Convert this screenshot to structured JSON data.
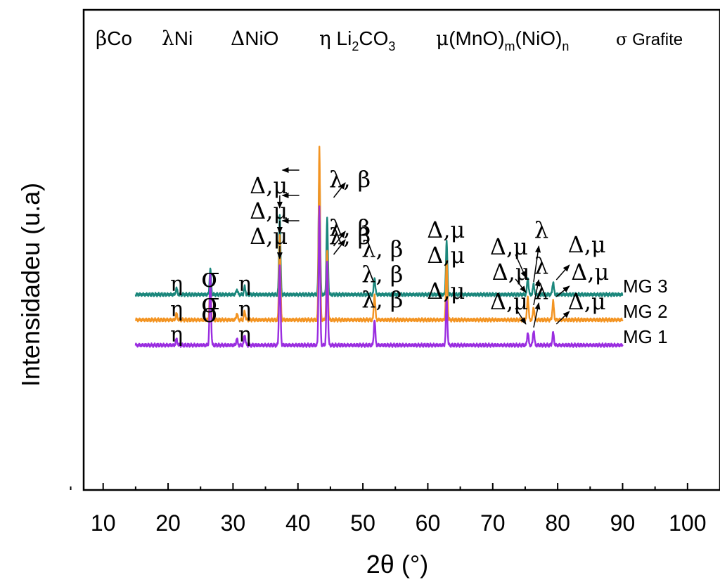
{
  "chart_data": {
    "type": "line",
    "xlabel": "2θ (°)",
    "ylabel": "Intensidadeu (u.a)",
    "xlim": [
      7,
      105
    ],
    "x_ticks": [
      10,
      20,
      30,
      40,
      50,
      60,
      70,
      80,
      90,
      100
    ],
    "x_range_measured": [
      15,
      90
    ],
    "legend": {
      "placement": "top",
      "entries": [
        {
          "symbol": "β",
          "label": "Co"
        },
        {
          "symbol": "λ",
          "label": "Ni"
        },
        {
          "symbol": "Δ",
          "label": "NiO"
        },
        {
          "symbol": "η",
          "label": "Li2CO3"
        },
        {
          "symbol": "μ",
          "label": "(MnO)m(NiO)n"
        },
        {
          "symbol": "σ",
          "label": "Grafite"
        }
      ]
    },
    "series": [
      {
        "name": "MG 3",
        "color": "#1b877c",
        "baseline": 0.6,
        "peaks": [
          {
            "x": 21.3,
            "h": 0.15
          },
          {
            "x": 26.5,
            "h": 0.6
          },
          {
            "x": 30.6,
            "h": 0.12
          },
          {
            "x": 31.8,
            "h": 0.18
          },
          {
            "x": 37.2,
            "h": 1.9
          },
          {
            "x": 43.3,
            "h": 3.1
          },
          {
            "x": 44.5,
            "h": 1.8
          },
          {
            "x": 51.8,
            "h": 0.4
          },
          {
            "x": 62.9,
            "h": 1.25
          },
          {
            "x": 75.4,
            "h": 0.4
          },
          {
            "x": 76.3,
            "h": 0.25
          },
          {
            "x": 79.3,
            "h": 0.3
          }
        ]
      },
      {
        "name": "MG 2",
        "color": "#f39422",
        "baseline": 0.0,
        "peaks": [
          {
            "x": 21.3,
            "h": 0.15
          },
          {
            "x": 26.5,
            "h": 0.9
          },
          {
            "x": 30.6,
            "h": 0.15
          },
          {
            "x": 31.8,
            "h": 0.2
          },
          {
            "x": 37.2,
            "h": 2.0
          },
          {
            "x": 43.3,
            "h": 4.1
          },
          {
            "x": 44.5,
            "h": 1.6
          },
          {
            "x": 51.8,
            "h": 0.6
          },
          {
            "x": 62.9,
            "h": 1.4
          },
          {
            "x": 75.4,
            "h": 0.55
          },
          {
            "x": 76.3,
            "h": 0.3
          },
          {
            "x": 79.3,
            "h": 0.45
          }
        ]
      },
      {
        "name": "MG 1",
        "color": "#9a2de0",
        "baseline": -0.6,
        "peaks": [
          {
            "x": 21.3,
            "h": 0.15
          },
          {
            "x": 26.5,
            "h": 1.7
          },
          {
            "x": 30.6,
            "h": 0.15
          },
          {
            "x": 31.8,
            "h": 0.25
          },
          {
            "x": 37.2,
            "h": 1.9
          },
          {
            "x": 43.3,
            "h": 3.3
          },
          {
            "x": 44.5,
            "h": 2.0
          },
          {
            "x": 51.8,
            "h": 0.6
          },
          {
            "x": 62.9,
            "h": 1.1
          },
          {
            "x": 75.4,
            "h": 0.3
          },
          {
            "x": 76.3,
            "h": 0.35
          },
          {
            "x": 79.3,
            "h": 0.3
          }
        ]
      }
    ]
  },
  "annotations": [
    {
      "id": "mg3-eta-1",
      "text": "η",
      "x": 21.3,
      "y": 0.68,
      "size": 30
    },
    {
      "id": "mg3-sigma",
      "text": "σ",
      "x": 26.5,
      "y": 0.78,
      "size": 38
    },
    {
      "id": "mg3-eta-2",
      "text": "η",
      "x": 31.8,
      "y": 0.68,
      "size": 30
    },
    {
      "id": "mg3-delta-mu-1",
      "text": "Δ,μ",
      "x": 35.5,
      "y": 3.0,
      "size": 32
    },
    {
      "id": "mg3-lambda-beta-1",
      "text": "λ, β",
      "x": 48.0,
      "y": 3.15,
      "size": 32
    },
    {
      "id": "mg3-lambda-beta-2",
      "text": "λ, β",
      "x": 53.0,
      "y": 1.5,
      "size": 32
    },
    {
      "id": "mg3-delta-mu-2",
      "text": "Δ,μ",
      "x": 62.8,
      "y": 1.95,
      "size": 32
    },
    {
      "id": "mg3-delta-mu-3",
      "text": "Δ,μ",
      "x": 72.5,
      "y": 1.55,
      "size": 32
    },
    {
      "id": "mg3-lambda",
      "text": "λ",
      "x": 77.5,
      "y": 1.95,
      "size": 32
    },
    {
      "id": "mg3-delta-mu-4",
      "text": "Δ,μ",
      "x": 84.5,
      "y": 1.6,
      "size": 32
    },
    {
      "id": "mg3-series-label",
      "text": "MG 3",
      "x": 93.5,
      "y": 0.65,
      "size": 26
    },
    {
      "id": "mg2-eta-1",
      "text": "η",
      "x": 21.3,
      "y": 0.08,
      "size": 30
    },
    {
      "id": "mg2-sigma",
      "text": "σ",
      "x": 26.5,
      "y": 0.18,
      "size": 38
    },
    {
      "id": "mg2-eta-2",
      "text": "η",
      "x": 31.8,
      "y": 0.08,
      "size": 30
    },
    {
      "id": "mg2-delta-mu-1",
      "text": "Δ,μ",
      "x": 35.5,
      "y": 2.4,
      "size": 32
    },
    {
      "id": "mg2-lambda-beta-1",
      "text": "λ, β",
      "x": 48.0,
      "y": 2.0,
      "size": 32
    },
    {
      "id": "mg2-lambda-beta-2",
      "text": "λ, β",
      "x": 53.0,
      "y": 0.9,
      "size": 32
    },
    {
      "id": "mg2-delta-mu-2",
      "text": "Δ,μ",
      "x": 62.8,
      "y": 1.35,
      "size": 32
    },
    {
      "id": "mg2-delta-mu-3",
      "text": "Δ,μ",
      "x": 72.8,
      "y": 0.95,
      "size": 32
    },
    {
      "id": "mg2-lambda",
      "text": "λ",
      "x": 77.5,
      "y": 1.1,
      "size": 32
    },
    {
      "id": "mg2-delta-mu-4",
      "text": "Δ,μ",
      "x": 85.0,
      "y": 0.95,
      "size": 32
    },
    {
      "id": "mg2-series-label",
      "text": "MG 2",
      "x": 93.5,
      "y": 0.05,
      "size": 26
    },
    {
      "id": "mg1-eta-1",
      "text": "η",
      "x": 21.3,
      "y": -0.52,
      "size": 30
    },
    {
      "id": "mg1-sigma",
      "text": "σ",
      "x": 26.5,
      "y": -0.05,
      "size": 38
    },
    {
      "id": "mg1-eta-2",
      "text": "η",
      "x": 31.8,
      "y": -0.52,
      "size": 30
    },
    {
      "id": "mg1-delta-mu-1",
      "text": "Δ,μ",
      "x": 35.5,
      "y": 1.8,
      "size": 32
    },
    {
      "id": "mg1-lambda-beta-1",
      "text": "λ, β",
      "x": 48.0,
      "y": 1.8,
      "size": 32
    },
    {
      "id": "mg1-lambda-beta-2",
      "text": "λ, β",
      "x": 53.0,
      "y": 0.3,
      "size": 32
    },
    {
      "id": "mg1-delta-mu-2",
      "text": "Δ,μ",
      "x": 62.8,
      "y": 0.5,
      "size": 32
    },
    {
      "id": "mg1-delta-mu-3",
      "text": "Δ,μ",
      "x": 72.5,
      "y": 0.25,
      "size": 32
    },
    {
      "id": "mg1-lambda",
      "text": "λ",
      "x": 77.5,
      "y": 0.5,
      "size": 32
    },
    {
      "id": "mg1-delta-mu-4",
      "text": "Δ,μ",
      "x": 84.5,
      "y": 0.25,
      "size": 32
    },
    {
      "id": "mg1-series-label",
      "text": "MG 1",
      "x": 93.5,
      "y": -0.55,
      "size": 26
    }
  ],
  "arrows": [
    {
      "id": "mg3-arrow-1",
      "from": [
        40.2,
        3.55
      ],
      "to": [
        37.6,
        3.55
      ]
    },
    {
      "id": "mg3-arrow-2",
      "from": [
        37.2,
        2.95
      ],
      "to": [
        37.2,
        2.65
      ]
    },
    {
      "id": "mg3-arrow-3",
      "from": [
        45.5,
        2.9
      ],
      "to": [
        47.3,
        3.25
      ]
    },
    {
      "id": "mg3-arrow-4",
      "from": [
        73.5,
        1.55
      ],
      "to": [
        75.1,
        1.0
      ]
    },
    {
      "id": "mg3-arrow-5",
      "from": [
        76.3,
        0.9
      ],
      "to": [
        77.1,
        1.75
      ]
    },
    {
      "id": "mg3-arrow-6",
      "from": [
        79.8,
        0.95
      ],
      "to": [
        81.8,
        1.3
      ]
    },
    {
      "id": "mg2-arrow-1",
      "from": [
        40.2,
        2.95
      ],
      "to": [
        37.6,
        2.95
      ]
    },
    {
      "id": "mg2-arrow-2",
      "from": [
        37.2,
        2.35
      ],
      "to": [
        37.2,
        2.05
      ]
    },
    {
      "id": "mg2-arrow-3",
      "from": [
        45.5,
        1.75
      ],
      "to": [
        47.3,
        2.1
      ]
    },
    {
      "id": "mg2-arrow-4",
      "from": [
        73.5,
        0.97
      ],
      "to": [
        75.1,
        0.65
      ]
    },
    {
      "id": "mg2-arrow-5",
      "from": [
        76.3,
        0.35
      ],
      "to": [
        77.1,
        0.95
      ]
    },
    {
      "id": "mg2-arrow-6",
      "from": [
        79.8,
        0.55
      ],
      "to": [
        81.8,
        0.8
      ]
    },
    {
      "id": "mg1-arrow-1",
      "from": [
        40.2,
        2.35
      ],
      "to": [
        37.6,
        2.35
      ]
    },
    {
      "id": "mg1-arrow-2",
      "from": [
        37.2,
        1.75
      ],
      "to": [
        37.2,
        1.45
      ]
    },
    {
      "id": "mg1-arrow-3",
      "from": [
        45.5,
        1.55
      ],
      "to": [
        47.3,
        1.9
      ]
    },
    {
      "id": "mg1-arrow-4",
      "from": [
        73.5,
        0.28
      ],
      "to": [
        75.1,
        -0.1
      ]
    },
    {
      "id": "mg1-arrow-5",
      "from": [
        76.3,
        -0.18
      ],
      "to": [
        77.1,
        0.4
      ]
    },
    {
      "id": "mg1-arrow-6",
      "from": [
        79.8,
        -0.1
      ],
      "to": [
        81.8,
        0.2
      ]
    }
  ]
}
